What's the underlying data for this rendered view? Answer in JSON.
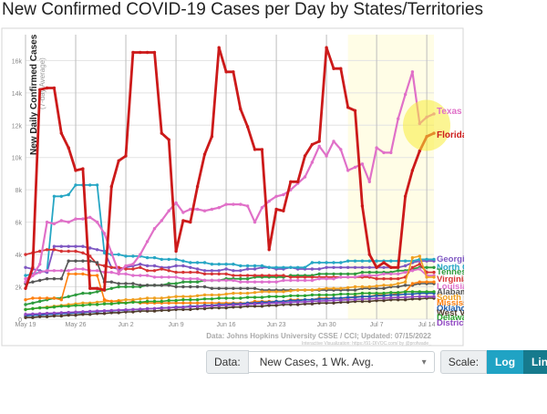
{
  "title": "New Confirmed COVID-19 Cases per Day by States/Territories",
  "chart_data": {
    "type": "line",
    "ylabel": "New Daily Confirmed Cases",
    "ylabel_sub": "(7-day Average)",
    "y_ticks": [
      "0",
      "2k",
      "4k",
      "6k",
      "8k",
      "10k",
      "12k",
      "14k",
      "16k"
    ],
    "y_tick_values": [
      0,
      2000,
      4000,
      6000,
      8000,
      10000,
      12000,
      14000,
      16000
    ],
    "ylim": [
      0,
      17600
    ],
    "x_ticks": [
      "May 19",
      "May 26",
      "Jun 2",
      "Jun 9",
      "Jun 16",
      "Jun 23",
      "Jun 30",
      "Jul 7",
      "Jul 14"
    ],
    "x_tick_index": [
      0,
      7,
      14,
      21,
      28,
      35,
      42,
      49,
      56
    ],
    "x_count": 58,
    "highlight_start_index": 45,
    "grid": true,
    "source_note": "Data: Johns Hopkins University CSSE / CCI; Updated: 07/15/2022",
    "viz_note": "Interactive Visualization: https://91-DIVOC.com/ by @profwade_",
    "series": [
      {
        "name": "Texas",
        "color": "#e070c8",
        "width": 2.2,
        "values": [
          2300,
          2700,
          3400,
          6000,
          5900,
          6100,
          6000,
          6200,
          6200,
          6300,
          6000,
          5300,
          4100,
          2900,
          3300,
          3400,
          4000,
          4800,
          5600,
          6100,
          6700,
          7200,
          6600,
          6800,
          6800,
          6700,
          6800,
          6900,
          7100,
          7100,
          7100,
          7000,
          6000,
          6900,
          7300,
          7600,
          7700,
          8000,
          8400,
          8800,
          9700,
          10700,
          10100,
          11000,
          10500,
          9200,
          9400,
          9600,
          8500,
          10600,
          10300,
          10300,
          12400,
          13900,
          15300,
          12100,
          12500,
          12700
        ]
      },
      {
        "name": "Florida",
        "color": "#cc1a1a",
        "width": 2.8,
        "values": [
          1900,
          3200,
          14200,
          14300,
          14300,
          11500,
          10600,
          9200,
          9300,
          1900,
          1900,
          1800,
          8200,
          9800,
          10100,
          16500,
          16500,
          16500,
          16500,
          11500,
          11100,
          4200,
          6100,
          6000,
          8200,
          10200,
          11300,
          16800,
          15300,
          15300,
          13000,
          11900,
          10500,
          10500,
          4300,
          6800,
          6700,
          8500,
          8500,
          10100,
          10800,
          11000,
          16800,
          15500,
          15500,
          13100,
          12900,
          7000,
          4000,
          3200,
          3500,
          3200,
          3200,
          7600,
          9200,
          10400,
          11300,
          11500
        ]
      },
      {
        "name": "Georgia",
        "color": "#7e57c2",
        "width": 1.8,
        "values": [
          3200,
          3100,
          3000,
          2900,
          4500,
          4500,
          4500,
          4500,
          4500,
          4400,
          4300,
          4200,
          3200,
          3100,
          3200,
          3300,
          3400,
          3300,
          3300,
          3200,
          3200,
          3300,
          3300,
          3200,
          3100,
          3000,
          3000,
          3000,
          3100,
          3000,
          3000,
          3100,
          3100,
          3200,
          3200,
          3100,
          3100,
          3200,
          3100,
          3100,
          3100,
          3100,
          3200,
          3200,
          3200,
          3200,
          3200,
          3200,
          3200,
          3200,
          3200,
          3200,
          3200,
          3300,
          3500,
          3600,
          3600,
          3600
        ]
      },
      {
        "name": "North Carolina",
        "color": "#26a6c4",
        "width": 1.8,
        "values": [
          2700,
          2800,
          2900,
          3000,
          7600,
          7600,
          7700,
          8300,
          8300,
          8300,
          8300,
          4100,
          4000,
          4000,
          3900,
          3900,
          3900,
          3800,
          3800,
          3700,
          3700,
          3700,
          3600,
          3500,
          3500,
          3500,
          3400,
          3400,
          3400,
          3400,
          3300,
          3300,
          3300,
          3300,
          3200,
          3200,
          3200,
          3200,
          3200,
          3200,
          3500,
          3500,
          3500,
          3500,
          3500,
          3600,
          3600,
          3600,
          3600,
          3600,
          3600,
          3600,
          3600,
          3600,
          3600,
          3700,
          3700,
          3700
        ]
      },
      {
        "name": "Tennessee",
        "color": "#2e9b3e",
        "width": 1.8,
        "values": [
          900,
          1000,
          1100,
          1200,
          1300,
          1300,
          1400,
          1500,
          1600,
          1600,
          1700,
          1800,
          1900,
          2000,
          2000,
          2000,
          2000,
          2100,
          2100,
          2100,
          2200,
          2200,
          2300,
          2300,
          2300,
          2400,
          2400,
          2400,
          2500,
          2500,
          2500,
          2500,
          2600,
          2600,
          2600,
          2600,
          2600,
          2700,
          2700,
          2700,
          2700,
          2800,
          2800,
          2800,
          2800,
          2800,
          2800,
          2900,
          2900,
          2900,
          2900,
          2900,
          3000,
          3000,
          3100,
          3200,
          3200,
          3200
        ]
      },
      {
        "name": "Virginia",
        "color": "#d63333",
        "width": 1.8,
        "values": [
          4000,
          4100,
          4200,
          4300,
          4300,
          4200,
          4200,
          4200,
          4100,
          3900,
          3400,
          3300,
          3200,
          3200,
          3100,
          3100,
          3200,
          3000,
          3000,
          3100,
          3000,
          2900,
          2900,
          2900,
          2900,
          2800,
          2800,
          2800,
          2800,
          2700,
          2700,
          2700,
          2700,
          2700,
          2700,
          2700,
          2700,
          2600,
          2600,
          2600,
          2600,
          2600,
          2600,
          2600,
          2600,
          2600,
          2600,
          2600,
          2600,
          2500,
          2500,
          2500,
          2500,
          2600,
          3200,
          3400,
          2900,
          2900
        ]
      },
      {
        "name": "Louisiana",
        "color": "#de6fcd",
        "width": 1.8,
        "values": [
          2500,
          2700,
          2900,
          3000,
          3000,
          3000,
          3000,
          3100,
          3100,
          3000,
          3000,
          2900,
          2900,
          2800,
          2800,
          2700,
          2700,
          2700,
          2600,
          2600,
          2600,
          2600,
          2500,
          2500,
          2500,
          2400,
          2400,
          2400,
          2400,
          2400,
          2300,
          2300,
          2300,
          2300,
          2300,
          2300,
          2400,
          2400,
          2400,
          2400,
          2400,
          2500,
          2500,
          2500,
          2600,
          2600,
          2600,
          2700,
          2700,
          2700,
          2800,
          2800,
          2800,
          2900,
          3000,
          3100,
          2700,
          2700
        ]
      },
      {
        "name": "Alabama",
        "color": "#555555",
        "width": 1.6,
        "values": [
          2200,
          2300,
          2400,
          2500,
          2500,
          2500,
          3600,
          3600,
          3600,
          3600,
          3500,
          2300,
          2300,
          2200,
          2200,
          2200,
          2100,
          2100,
          2100,
          2100,
          2100,
          2000,
          2000,
          2000,
          2000,
          2000,
          1900,
          1900,
          1900,
          1900,
          1900,
          1900,
          1900,
          1800,
          1800,
          1800,
          1800,
          1800,
          1800,
          1800,
          1800,
          1800,
          1800,
          1800,
          1800,
          1800,
          1800,
          1900,
          1900,
          1900,
          1900,
          2000,
          2000,
          2100,
          2100,
          2200,
          2200,
          2200
        ]
      },
      {
        "name": "South Carolina",
        "color": "#f0a020",
        "width": 1.6,
        "values": [
          600,
          650,
          700,
          750,
          800,
          850,
          900,
          950,
          1000,
          1000,
          1050,
          1100,
          1100,
          1150,
          1200,
          1200,
          1250,
          1300,
          1300,
          1300,
          1350,
          1400,
          1400,
          1400,
          1450,
          1500,
          1500,
          1500,
          1550,
          1600,
          1600,
          1600,
          1650,
          1700,
          1700,
          1700,
          1700,
          1750,
          1800,
          1800,
          1800,
          1850,
          1900,
          1900,
          1900,
          1950,
          2000,
          2000,
          2000,
          2050,
          2100,
          2100,
          2200,
          2300,
          3800,
          3900,
          2600,
          2600
        ]
      },
      {
        "name": "Mississippi",
        "color": "#ff7f0e",
        "width": 1.6,
        "values": [
          1200,
          1300,
          1300,
          1300,
          1300,
          1200,
          2800,
          2800,
          2800,
          2700,
          2700,
          1200,
          1100,
          1100,
          1000,
          1100,
          1000,
          1000,
          1000,
          1000,
          1000,
          1000,
          1000,
          1000,
          1000,
          1000,
          1000,
          1000,
          1000,
          1000,
          1000,
          1000,
          1100,
          1100,
          1100,
          1100,
          1100,
          1200,
          1200,
          1200,
          1200,
          1300,
          1300,
          1300,
          1300,
          1300,
          1400,
          1400,
          1400,
          1500,
          1500,
          1500,
          1600,
          1700,
          2200,
          2300,
          2300,
          2300
        ]
      },
      {
        "name": "Oklahoma",
        "color": "#1f5fb0",
        "width": 1.6,
        "values": [
          200,
          250,
          250,
          300,
          300,
          350,
          350,
          400,
          400,
          450,
          450,
          500,
          500,
          550,
          550,
          600,
          600,
          650,
          650,
          700,
          700,
          750,
          750,
          800,
          800,
          850,
          850,
          900,
          900,
          950,
          950,
          1000,
          1000,
          1050,
          1050,
          1100,
          1100,
          1150,
          1150,
          1200,
          1200,
          1250,
          1250,
          1300,
          1300,
          1350,
          1350,
          1400,
          1400,
          1450,
          1450,
          1500,
          1500,
          1550,
          1550,
          1600,
          1600,
          1600
        ]
      },
      {
        "name": "West Virginia",
        "color": "#4e3b2a",
        "width": 1.6,
        "values": [
          100,
          100,
          150,
          150,
          200,
          200,
          250,
          250,
          300,
          300,
          350,
          350,
          400,
          400,
          450,
          450,
          500,
          500,
          500,
          550,
          550,
          600,
          600,
          600,
          650,
          650,
          700,
          700,
          700,
          750,
          750,
          800,
          800,
          800,
          850,
          850,
          900,
          900,
          900,
          950,
          950,
          1000,
          1000,
          1000,
          1050,
          1050,
          1100,
          1100,
          1100,
          1150,
          1150,
          1200,
          1200,
          1200,
          1250,
          1250,
          1300,
          1300
        ]
      },
      {
        "name": "Delaware",
        "color": "#29a32e",
        "width": 1.6,
        "values": [
          600,
          650,
          700,
          700,
          750,
          800,
          800,
          850,
          850,
          900,
          900,
          950,
          950,
          1000,
          1000,
          1050,
          1050,
          1100,
          1100,
          1100,
          1150,
          1150,
          1200,
          1200,
          1200,
          1250,
          1250,
          1300,
          1300,
          1300,
          1300,
          1350,
          1350,
          1350,
          1400,
          1400,
          1400,
          1450,
          1450,
          1450,
          1500,
          1500,
          1500,
          1500,
          1550,
          1550,
          1550,
          1600,
          1600,
          1600,
          1600,
          1650,
          1650,
          1700,
          1700,
          1700,
          1700,
          1700
        ]
      },
      {
        "name": "District of Columbia",
        "color": "#9047c2",
        "width": 1.6,
        "values": [
          300,
          320,
          340,
          360,
          380,
          400,
          420,
          440,
          460,
          480,
          500,
          520,
          540,
          560,
          580,
          600,
          620,
          640,
          660,
          680,
          700,
          720,
          740,
          760,
          780,
          800,
          820,
          840,
          860,
          880,
          900,
          920,
          940,
          960,
          980,
          1000,
          1020,
          1040,
          1060,
          1080,
          1100,
          1120,
          1140,
          1160,
          1180,
          1200,
          1220,
          1240,
          1260,
          1280,
          1300,
          1320,
          1340,
          1360,
          1380,
          1400,
          1400,
          1400
        ]
      }
    ],
    "end_labels": [
      {
        "text": "Texas",
        "color": "#e070c8"
      },
      {
        "text": "Florida",
        "color": "#cc1a1a"
      },
      {
        "text": "Georgia",
        "color": "#7e57c2"
      },
      {
        "text": "North Carolina",
        "color": "#26a6c4"
      },
      {
        "text": "Tennessee",
        "color": "#2e9b3e"
      },
      {
        "text": "Virginia",
        "color": "#d63333"
      },
      {
        "text": "Louisiana",
        "color": "#de6fcd"
      },
      {
        "text": "Alabama",
        "color": "#555555"
      },
      {
        "text": "South Carolina",
        "color": "#f0a020"
      },
      {
        "text": "Mississippi",
        "color": "#ff7f0e"
      },
      {
        "text": "Oklahoma",
        "color": "#1f5fb0"
      },
      {
        "text": "West Virginia",
        "color": "#4e3b2a"
      },
      {
        "text": "Delaware",
        "color": "#29a32e"
      },
      {
        "text": "District of Columbia",
        "color": "#9047c2"
      }
    ]
  },
  "controls": {
    "data_label": "Data:",
    "data_value": "New Cases, 1 Wk. Avg.",
    "scale_label": "Scale:",
    "log_label": "Log",
    "linear_label": "Linear"
  }
}
